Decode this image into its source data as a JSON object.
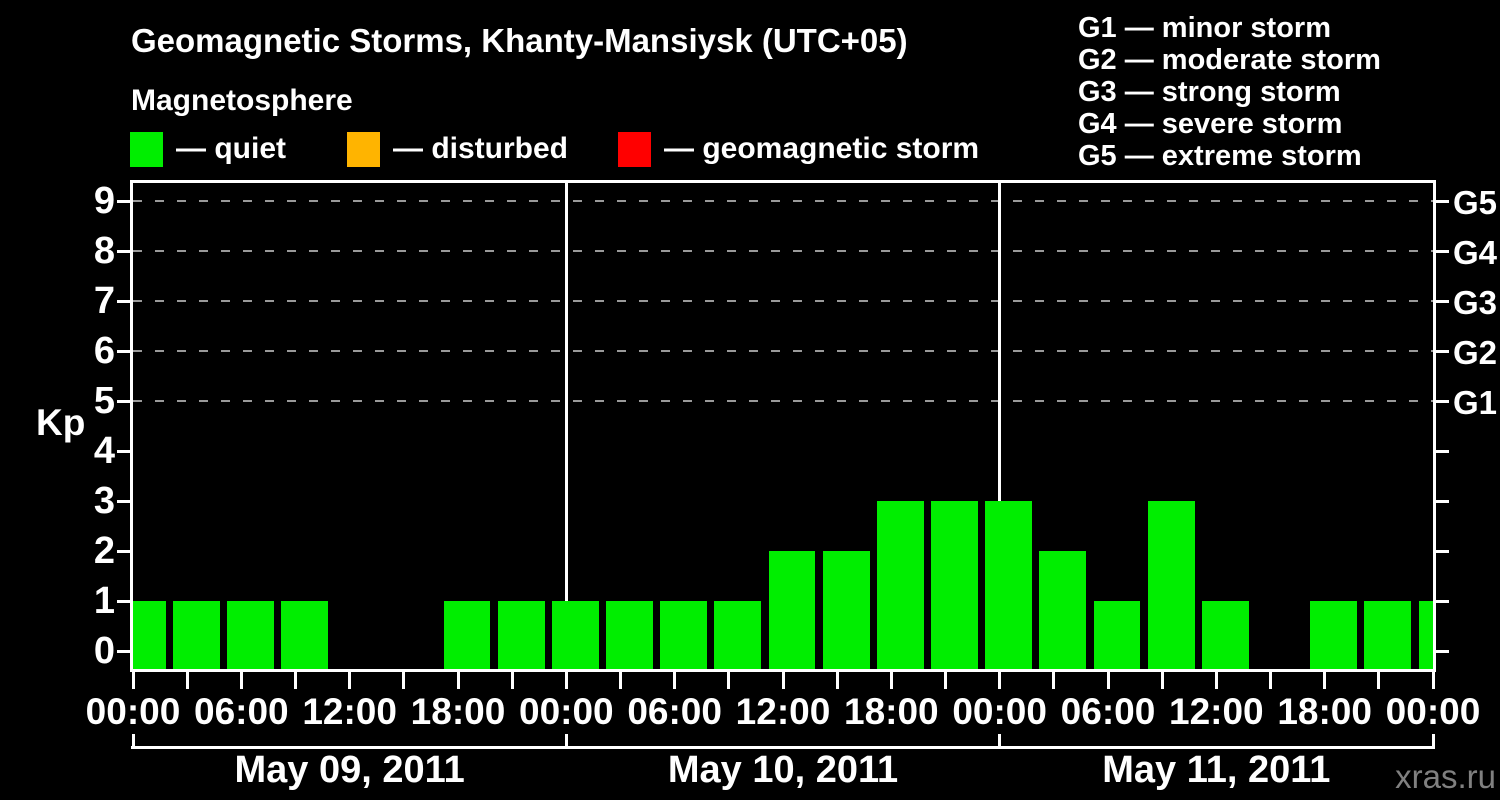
{
  "header": {
    "title": "Geomagnetic Storms, Khanty-Mansiysk (UTC+05)",
    "subtitle": "Magnetosphere"
  },
  "legend": {
    "items": [
      {
        "name": "quiet",
        "label": "— quiet",
        "color": "#00ee00"
      },
      {
        "name": "disturbed",
        "label": "— disturbed",
        "color": "#ffb400"
      },
      {
        "name": "geomagnetic-storm",
        "label": "— geomagnetic storm",
        "color": "#ff0000"
      }
    ]
  },
  "storm_scale": {
    "lines": [
      "G1 — minor storm",
      "G2 — moderate storm",
      "G3 — strong storm",
      "G4 — severe storm",
      "G5 — extreme storm"
    ]
  },
  "watermark": "xras.ru",
  "chart_data": {
    "type": "bar",
    "title": "Geomagnetic Storms, Khanty-Mansiysk (UTC+05)",
    "ylabel": "Kp",
    "ylim": [
      0,
      9.5
    ],
    "y_ticks": [
      0,
      1,
      2,
      3,
      4,
      5,
      6,
      7,
      8,
      9
    ],
    "grid_levels": [
      5,
      6,
      7,
      8,
      9
    ],
    "grid_on": true,
    "right_axis_labels": [
      {
        "kp": 9,
        "label": "G5"
      },
      {
        "kp": 8,
        "label": "G4"
      },
      {
        "kp": 7,
        "label": "G3"
      },
      {
        "kp": 6,
        "label": "G2"
      },
      {
        "kp": 5,
        "label": "G1"
      }
    ],
    "hours_per_bar": 3,
    "time_tick_labels": [
      "00:00",
      "06:00",
      "12:00",
      "18:00"
    ],
    "days": [
      {
        "date": "May 09, 2011",
        "kp_3h": [
          1,
          1,
          1,
          1,
          0,
          0,
          1,
          1
        ]
      },
      {
        "date": "May 10, 2011",
        "kp_3h": [
          1,
          1,
          1,
          1,
          2,
          2,
          3,
          3
        ]
      },
      {
        "date": "May 11, 2011",
        "kp_3h": [
          3,
          2,
          1,
          3,
          1,
          0,
          1,
          1
        ]
      }
    ],
    "trailing_partial_bar_kp": 1,
    "colors": {
      "bar": "#00ee00",
      "axis": "#ffffff",
      "grid": "#9a9a9a",
      "background": "#000000",
      "watermark": "#808080"
    }
  }
}
